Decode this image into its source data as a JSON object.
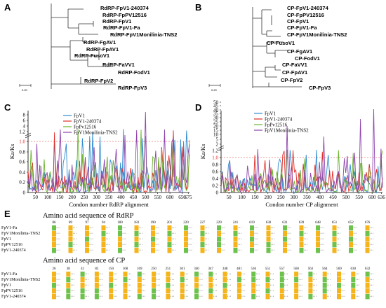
{
  "panels": {
    "A": "A",
    "B": "B",
    "C": "C",
    "D": "D",
    "E": "E"
  },
  "tree_a": {
    "leaves": [
      "RdRP-FpV1-240374",
      "RdRP-FpPV12516",
      "RdRP-FpV1",
      "RdRP-FpV1-Fa",
      "RdRP-FpV1Monilinia-TNS2",
      "RdRP-FgAV1",
      "RdRP-FpAV1",
      "RdRP-FusoV1",
      "RdRP-FaVV1",
      "RdRP-FodV1",
      "RdRP-FpV2",
      "RdRP-FpV3"
    ],
    "scale": "0.20"
  },
  "tree_b": {
    "leaves": [
      "CP-FpV1-240374",
      "CP-FpPV12516",
      "CP-FpV1",
      "CP-FpV1-Fa",
      "CP-FpV1Monilinia-TNS2",
      "CP-FusoV1",
      "CP-FgAV1",
      "CP-FodV1",
      "CP-FaVV1",
      "CP-FpAV1",
      "CP-FpV2",
      "CP-FpV3"
    ],
    "scale": "0.20"
  },
  "chart_data": [
    {
      "type": "line",
      "panel": "C",
      "ylabel": "Ka/Ks",
      "xlabel": "Condon number RdRP alignment",
      "xticks": [
        "50",
        "100",
        "150",
        "200",
        "250",
        "300",
        "350",
        "400",
        "450",
        "500",
        "550",
        "600",
        "650",
        "675"
      ],
      "yticks": [
        "0",
        "0.2",
        "0.4",
        "0.6",
        "0.8",
        "1.0",
        "1.2",
        "4",
        "6",
        "8"
      ],
      "reference": "1.0",
      "series": [
        {
          "name": "FpV1",
          "color": "#2e8bd0"
        },
        {
          "name": "FpV1-240374",
          "color": "#e0302a"
        },
        {
          "name": "FpPv12516",
          "color": "#6ab42d"
        },
        {
          "name": "FpV1Monilinia-TNS2",
          "color": "#8e44ad"
        }
      ]
    },
    {
      "type": "line",
      "panel": "D",
      "ylabel": "Ka/Ks",
      "xlabel": "Condon number CP alignment",
      "xticks": [
        "50",
        "100",
        "150",
        "200",
        "250",
        "300",
        "350",
        "400",
        "450",
        "500",
        "550",
        "600",
        "636"
      ],
      "yticks": [
        "0",
        "0.2",
        "0.4",
        "0.6",
        "0.8",
        "1.0",
        "1.2",
        "2",
        "5",
        "10",
        "15",
        "20",
        "25",
        "30",
        "35",
        "40",
        "45",
        "50"
      ],
      "reference": "1.0",
      "series": [
        {
          "name": "FpV1",
          "color": "#2e8bd0"
        },
        {
          "name": "FpV1-240374",
          "color": "#e0302a"
        },
        {
          "name": "FpPv12516",
          "color": "#6ab42d"
        },
        {
          "name": "FpV1Monilinia-TNS2",
          "color": "#8e44ad"
        }
      ]
    }
  ],
  "align_rdrp": {
    "title": "Amino acid sequence of RdRP",
    "rows": [
      "FpV1-Fa",
      "FpV1Monilinia-TNS2",
      "FpV1",
      "FpPV12516",
      "FpV1-240374"
    ],
    "positions": [
      "86",
      "89",
      "97",
      "94",
      "180",
      "183",
      "190",
      "201",
      "220",
      "227",
      "229",
      "241",
      "619",
      "630",
      "631",
      "639",
      "648",
      "651",
      "652",
      "676"
    ]
  },
  "align_cp": {
    "title": "Amino acid sequence of CP",
    "rows": [
      "FpV1-Fa",
      "FpV1Monilinia-TNS2",
      "FpV1",
      "FpPV12516",
      "FpV1-240374"
    ],
    "positions": [
      "26",
      "38",
      "41",
      "82",
      "150",
      "168",
      "169",
      "250",
      "251",
      "301",
      "340",
      "347",
      "348",
      "481",
      "536",
      "551",
      "557",
      "560",
      "563",
      "564",
      "569",
      "630",
      "632"
    ]
  },
  "colors": {
    "orange": "#f4b41a",
    "green": "#6cc24a",
    "purple": "#8e44ad",
    "red": "#e0302a",
    "blue": "#2e8bd0",
    "lime": "#6ab42d"
  }
}
